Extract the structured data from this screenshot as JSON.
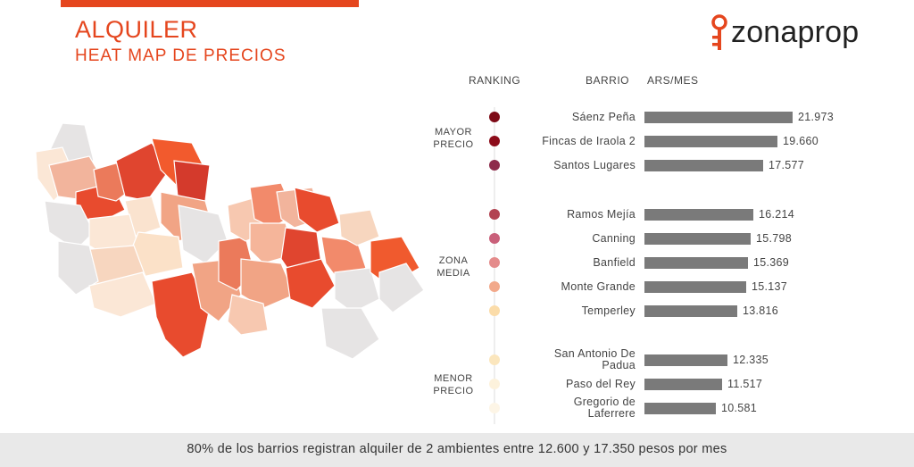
{
  "header": {
    "title": "ALQUILER",
    "subtitle": "HEAT MAP DE PRECIOS",
    "logo_text": "zonaprop",
    "accent_color": "#e5461e"
  },
  "columns": {
    "ranking": "RANKING",
    "barrio": "BARRIO",
    "price": "ARS/MES"
  },
  "groups": [
    {
      "line1": "MAYOR",
      "line2": "PRECIO"
    },
    {
      "line1": "ZONA",
      "line2": "MEDIA"
    },
    {
      "line1": "MENOR",
      "line2": "PRECIO"
    }
  ],
  "chart_data": {
    "type": "bar",
    "orientation": "horizontal",
    "unit": "ARS/MES",
    "bar_color": "#7a7a7a",
    "categories": [
      {
        "name": "Sáenz Peña",
        "value": 21973,
        "label": "21.973",
        "dot_color": "#7d0a16"
      },
      {
        "name": "Fincas de Iraola 2",
        "value": 19660,
        "label": "19.660",
        "dot_color": "#8c0c1a"
      },
      {
        "name": "Santos Lugares",
        "value": 17577,
        "label": "17.577",
        "dot_color": "#8d2b4b"
      },
      {
        "name": "Ramos Mejía",
        "value": 16214,
        "label": "16.214",
        "dot_color": "#b24352"
      },
      {
        "name": "Canning",
        "value": 15798,
        "label": "15.798",
        "dot_color": "#c9607a"
      },
      {
        "name": "Banfield",
        "value": 15369,
        "label": "15.369",
        "dot_color": "#e48b8b"
      },
      {
        "name": "Monte Grande",
        "value": 15137,
        "label": "15.137",
        "dot_color": "#f2a98b"
      },
      {
        "name": "Temperley",
        "value": 13816,
        "label": "13.816",
        "dot_color": "#fbdca9"
      },
      {
        "name": "San Antonio De\nPadua",
        "value": 12335,
        "label": "12.335",
        "dot_color": "#fbe6bd"
      },
      {
        "name": "Paso del Rey",
        "value": 11517,
        "label": "11.517",
        "dot_color": "#fdf2dc"
      },
      {
        "name": "Gregorio de\nLaferrere",
        "value": 10581,
        "label": "10.581",
        "dot_color": "#fdf5e6"
      }
    ]
  },
  "footer": {
    "text": "80% de los barrios registran alquiler de 2 ambientes entre 12.600 y 17.350 pesos por mes"
  }
}
